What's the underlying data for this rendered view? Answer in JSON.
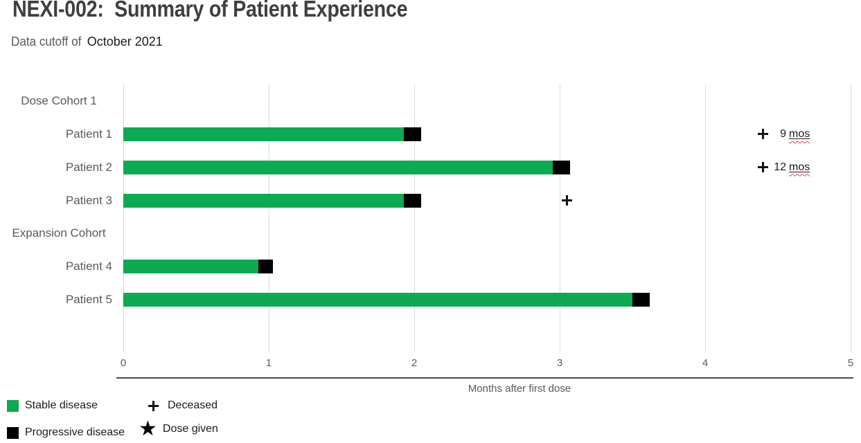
{
  "header": {
    "title": "NEXI-002:  Summary of Patient Experience",
    "subtitle_prefix": "Data cutoff of",
    "subtitle_date": "October 2021"
  },
  "chart_data": {
    "type": "bar",
    "subtype": "swimmer-plot",
    "title": "NEXI-002: Summary of Patient Experience",
    "xlabel": "Months after first dose",
    "xlim": [
      0,
      5
    ],
    "xticks": [
      0,
      1,
      2,
      3,
      4,
      5
    ],
    "grid": "vertical",
    "units": "months",
    "rows": [
      {
        "label": "Dose Cohort 1",
        "kind": "group"
      },
      {
        "label": "Patient 1",
        "kind": "patient",
        "segments": [
          {
            "status": "stable",
            "start": 0,
            "end": 1.93
          },
          {
            "status": "progressive",
            "start": 1.93,
            "end": 2.05
          }
        ]
      },
      {
        "label": "Patient 2",
        "kind": "patient",
        "segments": [
          {
            "status": "stable",
            "start": 0,
            "end": 2.95
          },
          {
            "status": "progressive",
            "start": 2.95,
            "end": 3.07
          }
        ]
      },
      {
        "label": "Patient 3",
        "kind": "patient",
        "segments": [
          {
            "status": "stable",
            "start": 0,
            "end": 1.93
          },
          {
            "status": "progressive",
            "start": 1.93,
            "end": 2.05
          }
        ],
        "markers": [
          {
            "type": "deceased",
            "x": 3.05
          }
        ]
      },
      {
        "label": "Expansion Cohort",
        "kind": "group"
      },
      {
        "label": "Patient 4",
        "kind": "patient",
        "segments": [
          {
            "status": "stable",
            "start": 0,
            "end": 0.93
          },
          {
            "status": "progressive",
            "start": 0.93,
            "end": 1.03
          }
        ]
      },
      {
        "label": "Patient 5",
        "kind": "patient",
        "segments": [
          {
            "status": "stable",
            "start": 0,
            "end": 3.5
          },
          {
            "status": "progressive",
            "start": 3.5,
            "end": 3.62
          }
        ]
      }
    ],
    "annotations": [
      {
        "row": "Patient 1",
        "symbol": "plus",
        "value": "9",
        "unit": "mos"
      },
      {
        "row": "Patient 2",
        "symbol": "plus",
        "value": "12",
        "unit": "mos"
      }
    ],
    "colors": {
      "stable": "#0caa51",
      "progressive": "#000000",
      "gridline": "#d9d9d9",
      "axis_line": "#4a4a4a",
      "text_gray": "#595959",
      "text_black": "#1a1a1a",
      "squiggle_red": "#e04747"
    }
  },
  "legend": {
    "items": [
      {
        "icon": "green-square",
        "label": "Stable disease"
      },
      {
        "icon": "black-square",
        "label": "Progressive disease"
      },
      {
        "icon": "plus",
        "label": "Deceased"
      },
      {
        "icon": "star",
        "label": "Dose given"
      }
    ]
  }
}
